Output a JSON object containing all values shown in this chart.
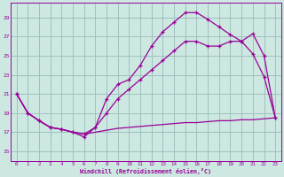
{
  "xlabel": "Windchill (Refroidissement éolien,°C)",
  "bg_color": "#cce8e0",
  "grid_color": "#99bbbb",
  "line_color": "#990099",
  "x_ticks": [
    0,
    1,
    2,
    3,
    4,
    5,
    6,
    7,
    8,
    9,
    10,
    11,
    12,
    13,
    14,
    15,
    16,
    17,
    18,
    19,
    20,
    21,
    22,
    23
  ],
  "y_ticks": [
    15,
    17,
    19,
    21,
    23,
    25,
    27,
    29
  ],
  "xlim": [
    -0.5,
    23.5
  ],
  "ylim": [
    14.0,
    30.5
  ],
  "line_flat_x": [
    0,
    1,
    2,
    3,
    4,
    5,
    6,
    7,
    8,
    9,
    10,
    11,
    12,
    13,
    14,
    15,
    16,
    17,
    18,
    19,
    20,
    21,
    22,
    23
  ],
  "line_flat_y": [
    21,
    19,
    18.2,
    17.5,
    17.3,
    17.0,
    16.8,
    17.0,
    17.2,
    17.4,
    17.5,
    17.6,
    17.7,
    17.8,
    17.9,
    18.0,
    18.0,
    18.1,
    18.2,
    18.2,
    18.3,
    18.3,
    18.4,
    18.5
  ],
  "line_mid_x": [
    0,
    1,
    2,
    3,
    4,
    5,
    6,
    7,
    8,
    9,
    10,
    11,
    12,
    13,
    14,
    15,
    16,
    17,
    18,
    19,
    20,
    21,
    22,
    23
  ],
  "line_mid_y": [
    21,
    19,
    18.2,
    17.5,
    17.3,
    17.0,
    16.8,
    17.5,
    19.0,
    20.5,
    21.5,
    22.5,
    23.5,
    24.5,
    25.5,
    26.5,
    26.5,
    26.0,
    26.0,
    26.5,
    26.5,
    25.2,
    22.8,
    18.5
  ],
  "line_top_x": [
    0,
    1,
    2,
    3,
    4,
    5,
    6,
    7,
    8,
    9,
    10,
    11,
    12,
    13,
    14,
    15,
    16,
    17,
    18,
    19,
    20,
    21,
    22,
    23
  ],
  "line_top_y": [
    21,
    19,
    18.2,
    17.5,
    17.3,
    17.0,
    16.5,
    17.5,
    20.5,
    22.0,
    22.5,
    24.0,
    26.0,
    27.5,
    28.5,
    29.5,
    29.5,
    28.8,
    28.0,
    27.2,
    26.5,
    27.3,
    25.0,
    18.5
  ]
}
